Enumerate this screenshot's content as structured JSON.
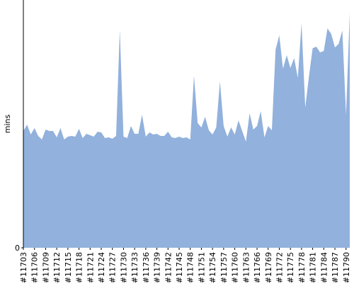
{
  "chart_data": {
    "type": "area",
    "y_label": "mins",
    "color": "#92b1dc",
    "ylim": [
      0,
      350
    ],
    "yticks": [
      0
    ],
    "categories": [
      "#11703",
      null,
      null,
      "#11706",
      null,
      null,
      "#11709",
      null,
      null,
      "#11712",
      null,
      null,
      "#11715",
      null,
      null,
      "#11718",
      null,
      null,
      "#11721",
      null,
      null,
      "#11724",
      null,
      null,
      "#11727",
      null,
      null,
      "#11730",
      null,
      null,
      "#11733",
      null,
      null,
      "#11736",
      null,
      null,
      "#11739",
      null,
      null,
      "#11742",
      null,
      null,
      "#11745",
      null,
      null,
      "#11748",
      null,
      null,
      "#11751",
      null,
      null,
      "#11754",
      null,
      null,
      "#11757",
      null,
      null,
      "#11760",
      null,
      null,
      "#11763",
      null,
      null,
      "#11766",
      null,
      null,
      "#11769",
      null,
      null,
      "#11772",
      null,
      null,
      "#11775",
      null,
      null,
      "#11778",
      null,
      null,
      "#11781",
      null,
      null,
      "#11784",
      null,
      null,
      "#11787",
      null,
      null,
      "#11790",
      null
    ],
    "values": [
      165,
      174,
      160,
      169,
      158,
      153,
      167,
      165,
      165,
      156,
      169,
      153,
      157,
      158,
      157,
      168,
      155,
      161,
      159,
      157,
      164,
      163,
      155,
      156,
      154,
      158,
      308,
      157,
      155,
      172,
      161,
      161,
      188,
      157,
      163,
      160,
      161,
      158,
      158,
      164,
      156,
      155,
      157,
      155,
      156,
      153,
      243,
      176,
      170,
      185,
      166,
      160,
      170,
      235,
      172,
      157,
      170,
      160,
      180,
      165,
      150,
      190,
      167,
      172,
      193,
      156,
      172,
      166,
      280,
      300,
      253,
      272,
      254,
      268,
      240,
      317,
      198,
      242,
      282,
      284,
      276,
      278,
      310,
      302,
      283,
      288,
      307,
      188,
      332
    ]
  }
}
